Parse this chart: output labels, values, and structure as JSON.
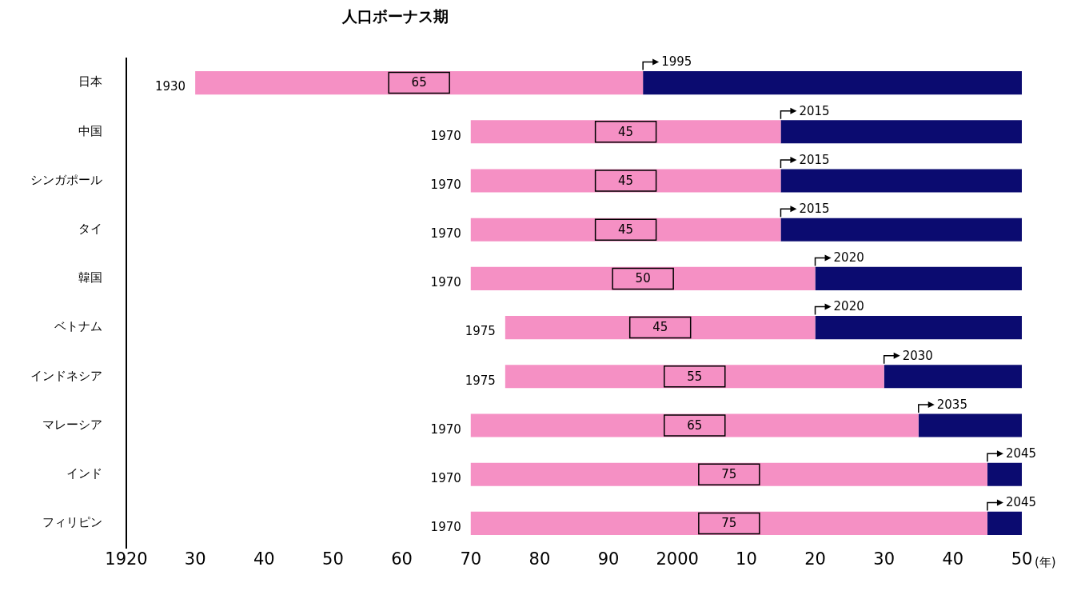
{
  "chart_data": {
    "type": "bar",
    "orientation": "horizontal",
    "title": "人口ボーナス期",
    "xlabel": "(年)",
    "categories": [
      "日本",
      "中国",
      "シンガポール",
      "タイ",
      "韓国",
      "ベトナム",
      "インドネシア",
      "マレーシア",
      "インド",
      "フィリピン"
    ],
    "series": [
      {
        "color": "#f590c4",
        "base": [
          1930,
          1970,
          1970,
          1970,
          1970,
          1975,
          1975,
          1970,
          1970,
          1970
        ],
        "values": [
          65,
          45,
          45,
          45,
          50,
          45,
          55,
          65,
          75,
          75
        ],
        "value_labels": [
          "65",
          "45",
          "45",
          "45",
          "50",
          "45",
          "55",
          "65",
          "75",
          "75"
        ]
      },
      {
        "color": "#0b0b70",
        "base": [
          1995,
          2015,
          2015,
          2015,
          2020,
          2020,
          2030,
          2035,
          2045,
          2045
        ],
        "values": [
          55,
          35,
          35,
          35,
          30,
          30,
          20,
          15,
          5,
          5
        ]
      }
    ],
    "xlim": [
      1920,
      2050
    ],
    "xticks": [
      1920,
      {
        "value": 1930,
        "label": "30"
      },
      {
        "value": 1940,
        "label": "40"
      },
      {
        "value": 1950,
        "label": "50"
      },
      {
        "value": 1960,
        "label": "60"
      },
      {
        "value": 1970,
        "label": "70"
      },
      {
        "value": 1980,
        "label": "80"
      },
      {
        "value": 1990,
        "label": "90"
      },
      2000,
      {
        "value": 2010,
        "label": "10"
      },
      {
        "value": 2020,
        "label": "20"
      },
      {
        "value": 2030,
        "label": "30"
      },
      {
        "value": 2040,
        "label": "40"
      },
      {
        "value": 2050,
        "label": "50"
      }
    ],
    "grid": false,
    "legend": false,
    "annotations": [
      {
        "text": "1930",
        "x": 1930,
        "y": "日本"
      },
      {
        "text": "1995",
        "x": 1995,
        "y": "日本"
      },
      {
        "text": "1970",
        "x": 1970,
        "y": "中国"
      },
      {
        "text": "2015",
        "x": 2015,
        "y": "中国"
      },
      {
        "text": "1970",
        "x": 1970,
        "y": "シンガポール"
      },
      {
        "text": "2015",
        "x": 2015,
        "y": "シンガポール"
      },
      {
        "text": "1970",
        "x": 1970,
        "y": "タイ"
      },
      {
        "text": "2015",
        "x": 2015,
        "y": "タイ"
      },
      {
        "text": "1970",
        "x": 1970,
        "y": "韓国"
      },
      {
        "text": "2020",
        "x": 2020,
        "y": "韓国"
      },
      {
        "text": "1975",
        "x": 1975,
        "y": "ベトナム"
      },
      {
        "text": "2020",
        "x": 2020,
        "y": "ベトナム"
      },
      {
        "text": "1975",
        "x": 1975,
        "y": "インドネシア"
      },
      {
        "text": "2030",
        "x": 2030,
        "y": "インドネシア"
      },
      {
        "text": "1970",
        "x": 1970,
        "y": "マレーシア"
      },
      {
        "text": "2035",
        "x": 2035,
        "y": "マレーシア"
      },
      {
        "text": "1970",
        "x": 1970,
        "y": "インド"
      },
      {
        "text": "2045",
        "x": 2045,
        "y": "インド"
      },
      {
        "text": "1970",
        "x": 1970,
        "y": "フィリピン"
      },
      {
        "text": "2045",
        "x": 2045,
        "y": "フィリピン"
      }
    ]
  }
}
